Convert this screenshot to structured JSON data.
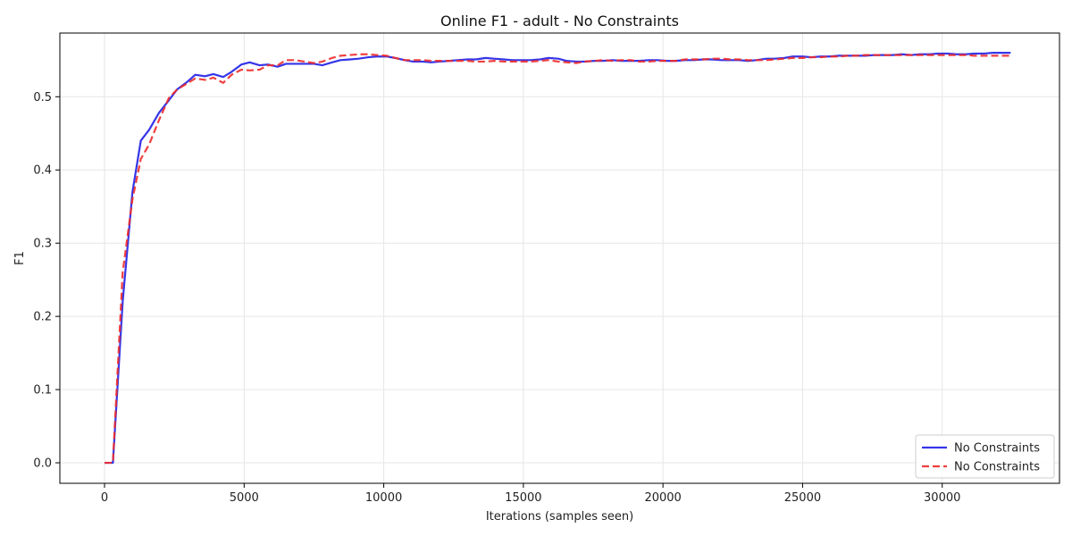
{
  "chart_data": {
    "type": "line",
    "title": "Online F1 - adult - No Constraints",
    "xlabel": "Iterations (samples seen)",
    "ylabel": "F1",
    "xlim": [
      -1600,
      34200
    ],
    "ylim": [
      -0.028,
      0.587
    ],
    "xticks": [
      0,
      5000,
      10000,
      15000,
      20000,
      25000,
      30000
    ],
    "yticks": [
      0.0,
      0.1,
      0.2,
      0.3,
      0.4,
      0.5
    ],
    "grid": true,
    "legend_position": "bottom-right",
    "series": [
      {
        "name": "No Constraints",
        "color": "#1f1fe6",
        "dash": "solid",
        "x": [
          0,
          300,
          650,
          1000,
          1300,
          1600,
          1950,
          2300,
          2600,
          2950,
          3250,
          3600,
          3900,
          4250,
          4550,
          4900,
          5200,
          5550,
          5850,
          6200,
          6500,
          6850,
          7150,
          7500,
          7800,
          8150,
          8450,
          8800,
          9100,
          9450,
          9750,
          10100,
          10400,
          10750,
          11050,
          11400,
          11700,
          12000,
          12350,
          12650,
          13000,
          13300,
          13650,
          13950,
          14300,
          14600,
          14950,
          15250,
          15600,
          15900,
          16250,
          16550,
          16900,
          17200,
          17550,
          17850,
          18200,
          18500,
          18850,
          19150,
          19500,
          19800,
          20150,
          20450,
          20800,
          21100,
          21450,
          21750,
          22100,
          22400,
          22700,
          23050,
          23350,
          23700,
          24000,
          24350,
          24650,
          25000,
          25300,
          25650,
          25950,
          26300,
          26600,
          26950,
          27250,
          27600,
          27900,
          28250,
          28550,
          28900,
          29200,
          29550,
          29850,
          30200,
          30500,
          30850,
          31150,
          31500,
          31800,
          32150,
          32450
        ],
        "y": [
          0.0,
          0.0,
          0.22,
          0.37,
          0.44,
          0.455,
          0.478,
          0.495,
          0.51,
          0.52,
          0.53,
          0.528,
          0.531,
          0.527,
          0.534,
          0.544,
          0.547,
          0.543,
          0.544,
          0.541,
          0.545,
          0.545,
          0.545,
          0.545,
          0.543,
          0.547,
          0.55,
          0.551,
          0.552,
          0.554,
          0.555,
          0.555,
          0.553,
          0.55,
          0.548,
          0.548,
          0.547,
          0.548,
          0.549,
          0.55,
          0.551,
          0.551,
          0.553,
          0.552,
          0.551,
          0.55,
          0.55,
          0.55,
          0.551,
          0.553,
          0.552,
          0.549,
          0.548,
          0.548,
          0.549,
          0.549,
          0.55,
          0.549,
          0.549,
          0.549,
          0.55,
          0.55,
          0.549,
          0.549,
          0.55,
          0.55,
          0.551,
          0.551,
          0.55,
          0.55,
          0.55,
          0.549,
          0.55,
          0.552,
          0.552,
          0.553,
          0.555,
          0.555,
          0.554,
          0.555,
          0.555,
          0.556,
          0.556,
          0.556,
          0.556,
          0.557,
          0.557,
          0.557,
          0.558,
          0.557,
          0.558,
          0.558,
          0.559,
          0.559,
          0.558,
          0.558,
          0.559,
          0.559,
          0.56,
          0.56,
          0.56
        ]
      },
      {
        "name": "No Constraints",
        "color": "#ee2b2b",
        "dash": "dashed",
        "x": [
          0,
          300,
          650,
          1000,
          1300,
          1600,
          1950,
          2300,
          2600,
          2950,
          3250,
          3600,
          3900,
          4250,
          4550,
          4900,
          5200,
          5550,
          5850,
          6200,
          6500,
          6850,
          7150,
          7500,
          7800,
          8150,
          8450,
          8800,
          9100,
          9450,
          9750,
          10100,
          10400,
          10750,
          11050,
          11400,
          11700,
          12000,
          12350,
          12650,
          13000,
          13300,
          13650,
          13950,
          14300,
          14600,
          14950,
          15250,
          15600,
          15900,
          16250,
          16550,
          16900,
          17200,
          17550,
          17850,
          18200,
          18500,
          18850,
          19150,
          19500,
          19800,
          20150,
          20450,
          20800,
          21100,
          21450,
          21750,
          22100,
          22400,
          22700,
          23050,
          23350,
          23700,
          24000,
          24350,
          24650,
          25000,
          25300,
          25650,
          25950,
          26300,
          26600,
          26950,
          27250,
          27600,
          27900,
          28250,
          28550,
          28900,
          29200,
          29550,
          29850,
          30200,
          30500,
          30850,
          31150,
          31500,
          31800,
          32150,
          32450
        ],
        "y": [
          0.0,
          0.0,
          0.26,
          0.36,
          0.415,
          0.435,
          0.468,
          0.498,
          0.51,
          0.518,
          0.525,
          0.523,
          0.526,
          0.519,
          0.53,
          0.537,
          0.536,
          0.537,
          0.543,
          0.543,
          0.55,
          0.55,
          0.548,
          0.546,
          0.548,
          0.553,
          0.556,
          0.557,
          0.558,
          0.558,
          0.557,
          0.556,
          0.553,
          0.55,
          0.55,
          0.55,
          0.549,
          0.549,
          0.549,
          0.549,
          0.549,
          0.548,
          0.548,
          0.549,
          0.548,
          0.548,
          0.548,
          0.548,
          0.549,
          0.55,
          0.548,
          0.547,
          0.546,
          0.548,
          0.549,
          0.55,
          0.549,
          0.55,
          0.55,
          0.548,
          0.548,
          0.549,
          0.549,
          0.549,
          0.551,
          0.551,
          0.551,
          0.552,
          0.552,
          0.551,
          0.551,
          0.55,
          0.55,
          0.55,
          0.551,
          0.552,
          0.553,
          0.553,
          0.554,
          0.554,
          0.555,
          0.555,
          0.556,
          0.556,
          0.557,
          0.557,
          0.557,
          0.557,
          0.557,
          0.557,
          0.557,
          0.557,
          0.557,
          0.557,
          0.557,
          0.557,
          0.556,
          0.556,
          0.556,
          0.556,
          0.556
        ]
      }
    ]
  }
}
